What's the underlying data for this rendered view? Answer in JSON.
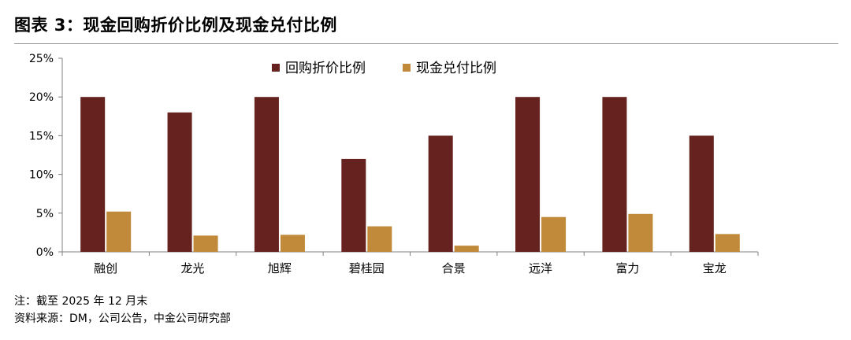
{
  "title": "图表 3：现金回购折价比例及现金兑付比例",
  "notes": {
    "note": "注：截至 2025 年 12 月末",
    "source": "资料来源：DM，公司公告，中金公司研究部"
  },
  "colors": {
    "series1": "#66221E",
    "series2": "#C08A3A",
    "axis": "#808080"
  },
  "chart_data": {
    "type": "bar",
    "categories": [
      "融创",
      "龙光",
      "旭辉",
      "碧桂园",
      "合景",
      "远洋",
      "富力",
      "宝龙"
    ],
    "series": [
      {
        "name": "回购折价比例",
        "values": [
          20,
          18,
          20,
          12,
          15,
          20,
          20,
          15
        ]
      },
      {
        "name": "现金兑付比例",
        "values": [
          5.2,
          2.1,
          2.2,
          3.3,
          0.8,
          4.5,
          4.9,
          2.3
        ]
      }
    ],
    "ylim": [
      0,
      25
    ],
    "yticks": [
      "0%",
      "5%",
      "10%",
      "15%",
      "20%",
      "25%"
    ],
    "ytick_values": [
      0,
      5,
      10,
      15,
      20,
      25
    ],
    "legend": "top-center",
    "grid": false
  }
}
